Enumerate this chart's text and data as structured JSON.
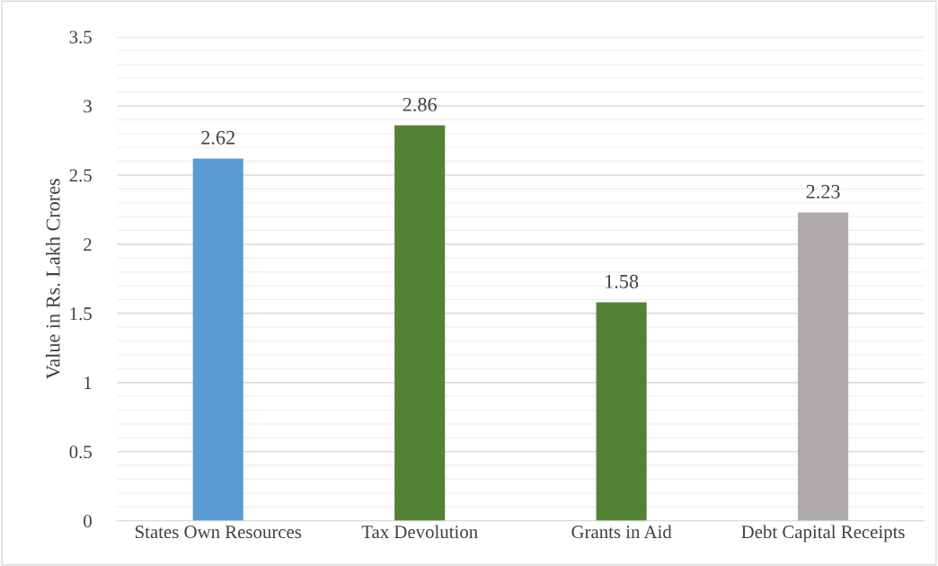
{
  "chart_data": {
    "type": "bar",
    "ylabel": "Value in Rs. Lakh Crores",
    "categories": [
      "States Own Resources",
      "Tax Devolution",
      "Grants in Aid",
      "Debt Capital Receipts"
    ],
    "values": [
      2.62,
      2.86,
      1.58,
      2.23
    ],
    "colors": [
      "#5b9bd5",
      "#548235",
      "#548235",
      "#aeaaaa"
    ],
    "ylim": [
      0,
      3.5
    ],
    "yticks": [
      0,
      0.5,
      1,
      1.5,
      2,
      2.5,
      3,
      3.5
    ],
    "grid": "y",
    "data_labels": true
  }
}
